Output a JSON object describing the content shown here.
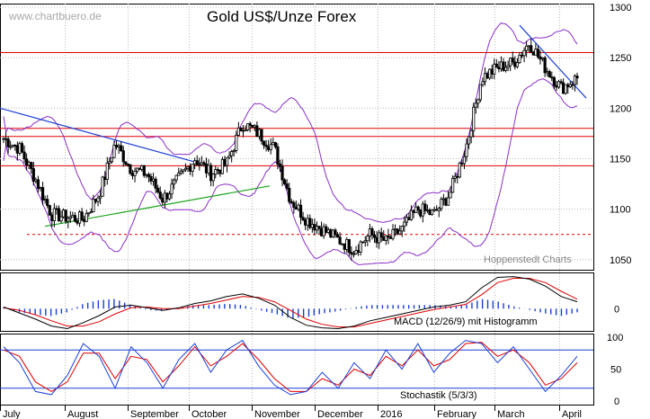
{
  "watermark": "www.chartbuero.de",
  "credit": "Hoppenstedt Charts",
  "colors": {
    "candle": "#000000",
    "band": "#8b2fc9",
    "support": "#e00000",
    "trend_down": "#1a3fd6",
    "trend_up": "#1aa31a",
    "macd": "#000000",
    "signal": "#e00000",
    "hist": "#1a3fd6",
    "stoch_k": "#1a3fd6",
    "stoch_d": "#e00000",
    "stoch_ref": "#1a3fd6",
    "grid": "#bbbbbb"
  },
  "chart_data": [
    {
      "type": "candlestick",
      "title": "Gold US$/Unze Forex",
      "x_labels": [
        "July",
        "August",
        "September",
        "October",
        "November",
        "December",
        "2016",
        "February",
        "March",
        "April"
      ],
      "ylim": [
        1040,
        1300
      ],
      "y_ticks": [
        1050,
        1100,
        1150,
        1200,
        1250,
        1300
      ],
      "grid": true,
      "horizontal_levels": [
        1255,
        1180,
        1172,
        1143
      ],
      "dashed_level": 1075,
      "price_path": [
        {
          "x": "July",
          "close": 1170
        },
        {
          "x": "July",
          "close": 1160
        },
        {
          "x": "July",
          "close": 1130
        },
        {
          "x": "July",
          "close": 1095
        },
        {
          "x": "July",
          "close": 1092
        },
        {
          "x": "August",
          "close": 1090
        },
        {
          "x": "August",
          "close": 1115
        },
        {
          "x": "August",
          "close": 1165
        },
        {
          "x": "August",
          "close": 1140
        },
        {
          "x": "September",
          "close": 1135
        },
        {
          "x": "September",
          "close": 1110
        },
        {
          "x": "September",
          "close": 1130
        },
        {
          "x": "September",
          "close": 1150
        },
        {
          "x": "September",
          "close": 1135
        },
        {
          "x": "October",
          "close": 1145
        },
        {
          "x": "October",
          "close": 1185
        },
        {
          "x": "October",
          "close": 1175
        },
        {
          "x": "October",
          "close": 1160
        },
        {
          "x": "November",
          "close": 1110
        },
        {
          "x": "November",
          "close": 1090
        },
        {
          "x": "November",
          "close": 1080
        },
        {
          "x": "December",
          "close": 1070
        },
        {
          "x": "December",
          "close": 1060
        },
        {
          "x": "December",
          "close": 1075
        },
        {
          "x": "December",
          "close": 1068
        },
        {
          "x": "2016",
          "close": 1080
        },
        {
          "x": "2016",
          "close": 1100
        },
        {
          "x": "2016",
          "close": 1095
        },
        {
          "x": "2016",
          "close": 1115
        },
        {
          "x": "February",
          "close": 1160
        },
        {
          "x": "February",
          "close": 1230
        },
        {
          "x": "February",
          "close": 1240
        },
        {
          "x": "March",
          "close": 1245
        },
        {
          "x": "March",
          "close": 1265
        },
        {
          "x": "March",
          "close": 1240
        },
        {
          "x": "April",
          "close": 1220
        },
        {
          "x": "April",
          "close": 1230
        }
      ]
    },
    {
      "type": "line",
      "label": "MACD (12/26/9) mit Histogramm",
      "y_ticks": [
        0
      ],
      "series": [
        {
          "name": "MACD",
          "values": [
            0.2,
            -0.5,
            -1.2,
            -2.0,
            -2.3,
            -1.6,
            -0.8,
            0.2,
            0.4,
            0.1,
            -0.2,
            0.1,
            0.6,
            0.9,
            1.4,
            1.7,
            1.2,
            0.4,
            -1.0,
            -1.9,
            -2.2,
            -2.3,
            -2.0,
            -1.4,
            -1.0,
            -0.6,
            -0.2,
            0.2,
            0.4,
            0.8,
            2.4,
            3.6,
            3.7,
            3.4,
            2.6,
            1.4,
            0.8
          ]
        },
        {
          "name": "Signal",
          "values": [
            0.1,
            -0.2,
            -0.7,
            -1.4,
            -2.0,
            -2.0,
            -1.5,
            -0.6,
            0.1,
            0.2,
            0.0,
            0.0,
            0.3,
            0.6,
            1.0,
            1.4,
            1.3,
            0.8,
            -0.2,
            -1.2,
            -1.8,
            -2.1,
            -2.1,
            -1.7,
            -1.3,
            -0.9,
            -0.5,
            -0.1,
            0.2,
            0.5,
            1.6,
            3.0,
            3.5,
            3.5,
            3.0,
            2.0,
            1.1
          ]
        }
      ]
    },
    {
      "type": "line",
      "label": "Stochastik (5/3/3)",
      "ylim": [
        0,
        100
      ],
      "y_ticks": [
        0,
        50,
        100
      ],
      "reference_levels": [
        80,
        20
      ],
      "series": [
        {
          "name": "%K",
          "values": [
            85,
            60,
            15,
            10,
            40,
            90,
            70,
            20,
            85,
            60,
            20,
            65,
            90,
            45,
            80,
            95,
            55,
            25,
            10,
            15,
            45,
            20,
            60,
            35,
            80,
            50,
            90,
            45,
            75,
            95,
            90,
            60,
            85,
            50,
            15,
            40,
            70
          ]
        },
        {
          "name": "%D",
          "values": [
            80,
            70,
            30,
            15,
            30,
            75,
            75,
            35,
            70,
            65,
            30,
            55,
            85,
            55,
            70,
            90,
            65,
            35,
            15,
            15,
            35,
            25,
            50,
            40,
            70,
            55,
            80,
            55,
            65,
            90,
            92,
            70,
            80,
            60,
            25,
            35,
            60
          ]
        }
      ]
    }
  ]
}
